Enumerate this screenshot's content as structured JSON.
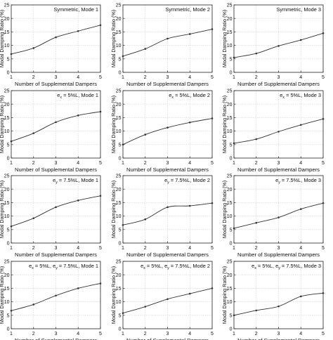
{
  "chart_data": [
    {
      "type": "line",
      "title": "Symmetric, Mode 1",
      "xlabel": "Number of Supplemental Dampers",
      "ylabel": "Modal Damping Ratio (%)",
      "x": [
        1,
        2,
        3,
        4,
        5
      ],
      "ylim": [
        0,
        25
      ],
      "yticks": [
        0,
        5,
        10,
        15,
        20,
        25
      ],
      "xticks": [
        1,
        2,
        3,
        4,
        5
      ],
      "grid": true,
      "series": [
        {
          "values": [
            6.8,
            9.0,
            13.0,
            15.3,
            17.5
          ]
        }
      ]
    },
    {
      "type": "line",
      "title": "Symmetric, Mode 2",
      "xlabel": "Number of Supplemental Dampers",
      "ylabel": "Modal Damping Ratio (%)",
      "x": [
        1,
        2,
        3,
        4,
        5
      ],
      "ylim": [
        0,
        25
      ],
      "yticks": [
        0,
        5,
        10,
        15,
        20,
        25
      ],
      "xticks": [
        1,
        2,
        3,
        4,
        5
      ],
      "grid": true,
      "series": [
        {
          "values": [
            6.0,
            8.7,
            12.5,
            14.2,
            16.0
          ]
        }
      ]
    },
    {
      "type": "line",
      "title": "Symmetric, Mode 3",
      "xlabel": "Number of Supplemental Dampers",
      "ylabel": "Modal Damping Ratio (%)",
      "x": [
        1,
        2,
        3,
        4,
        5
      ],
      "ylim": [
        0,
        25
      ],
      "yticks": [
        0,
        5,
        10,
        15,
        20,
        25
      ],
      "xticks": [
        1,
        2,
        3,
        4,
        5
      ],
      "grid": true,
      "series": [
        {
          "values": [
            5.5,
            7.0,
            9.8,
            12.0,
            14.5
          ]
        }
      ]
    },
    {
      "type": "line",
      "title": "e_x = 5%L, Mode 1",
      "title_main": "e",
      "title_sub": "x",
      "title_rest": " = 5%L, Mode 1",
      "xlabel": "Number of Supplemental Dampers",
      "ylabel": "Modal Damping Ratio (%)",
      "x": [
        1,
        2,
        3,
        4,
        5
      ],
      "ylim": [
        0,
        25
      ],
      "yticks": [
        0,
        5,
        10,
        15,
        20,
        25
      ],
      "xticks": [
        1,
        2,
        3,
        4,
        5
      ],
      "grid": true,
      "series": [
        {
          "values": [
            6.2,
            9.2,
            13.3,
            15.8,
            17.2
          ]
        }
      ]
    },
    {
      "type": "line",
      "title": "e_x = 5%L, Mode 2",
      "title_main": "e",
      "title_sub": "x",
      "title_rest": " = 5%L, Mode 2",
      "xlabel": "Number of Supplemental Dampers",
      "ylabel": "Modal Damping Ratio (%)",
      "x": [
        1,
        2,
        3,
        4,
        5
      ],
      "ylim": [
        0,
        25
      ],
      "yticks": [
        0,
        5,
        10,
        15,
        20,
        25
      ],
      "xticks": [
        1,
        2,
        3,
        4,
        5
      ],
      "grid": true,
      "series": [
        {
          "values": [
            5.0,
            8.7,
            11.3,
            13.2,
            14.7
          ]
        }
      ]
    },
    {
      "type": "line",
      "title": "e_x = 5%L, Mode 3",
      "title_main": "e",
      "title_sub": "x",
      "title_rest": " = 5%L, Mode 3",
      "xlabel": "Number of Supplemental Dampers",
      "ylabel": "Modal Damping Ratio (%)",
      "x": [
        1,
        2,
        3,
        4,
        5
      ],
      "ylim": [
        0,
        25
      ],
      "yticks": [
        0,
        5,
        10,
        15,
        20,
        25
      ],
      "xticks": [
        1,
        2,
        3,
        4,
        5
      ],
      "grid": true,
      "series": [
        {
          "values": [
            5.5,
            7.0,
            9.8,
            12.3,
            14.5
          ]
        }
      ]
    },
    {
      "type": "line",
      "title": "e_y = 7.5%L, Mode 1",
      "title_main": "e",
      "title_sub": "y",
      "title_rest": " = 7.5%L, Mode 1",
      "xlabel": "Number of Supplemental Dampers",
      "ylabel": "Modal Damping Ratio (%)",
      "x": [
        1,
        2,
        3,
        4,
        5
      ],
      "ylim": [
        0,
        25
      ],
      "yticks": [
        0,
        5,
        10,
        15,
        20,
        25
      ],
      "xticks": [
        1,
        2,
        3,
        4,
        5
      ],
      "grid": true,
      "series": [
        {
          "values": [
            6.2,
            9.2,
            13.3,
            15.8,
            17.5
          ]
        }
      ]
    },
    {
      "type": "line",
      "title": "e_y = 7.5%L, Mode 2",
      "title_main": "e",
      "title_sub": "y",
      "title_rest": " = 7.5%L, Mode 2",
      "xlabel": "Number of Supplemental Dampers",
      "ylabel": "Modal Damping Ratio (%)",
      "x": [
        1,
        2,
        3,
        4,
        5
      ],
      "ylim": [
        0,
        25
      ],
      "yticks": [
        0,
        5,
        10,
        15,
        20,
        25
      ],
      "xticks": [
        1,
        2,
        3,
        4,
        5
      ],
      "grid": true,
      "series": [
        {
          "values": [
            6.7,
            8.8,
            13.3,
            13.8,
            14.8
          ]
        }
      ]
    },
    {
      "type": "line",
      "title": "e_y = 7.5%L, Mode 3",
      "title_main": "e",
      "title_sub": "y",
      "title_rest": " = 7.5%L, Mode 3",
      "xlabel": "Number of Supplemental Dampers",
      "ylabel": "Modal Damping Ratio (%)",
      "x": [
        1,
        2,
        3,
        4,
        5
      ],
      "ylim": [
        0,
        25
      ],
      "yticks": [
        0,
        5,
        10,
        15,
        20,
        25
      ],
      "xticks": [
        1,
        2,
        3,
        4,
        5
      ],
      "grid": true,
      "series": [
        {
          "values": [
            5.5,
            7.5,
            9.5,
            12.6,
            14.8
          ]
        }
      ]
    },
    {
      "type": "line",
      "title": "e_x = 5%L, e_y = 7.5%L, Mode 1",
      "title_main": "e",
      "title_sub": "x",
      "title_rest": " = 5%L, e",
      "title_sub2": "y",
      "title_rest2": " = 7.5%L, Mode 1",
      "xlabel": "Number of Supplemental Dampers",
      "ylabel": "Modal Damping Ratio (%)",
      "x": [
        1,
        2,
        3,
        4,
        5
      ],
      "ylim": [
        0,
        25
      ],
      "yticks": [
        0,
        5,
        10,
        15,
        20,
        25
      ],
      "xticks": [
        1,
        2,
        3,
        4,
        5
      ],
      "grid": true,
      "series": [
        {
          "values": [
            6.7,
            9.0,
            12.3,
            15.0,
            16.8
          ]
        }
      ]
    },
    {
      "type": "line",
      "title": "e_x = 5%L, e_y = 7.5%L, Mode 2",
      "title_main": "e",
      "title_sub": "x",
      "title_rest": " = 5%L, e",
      "title_sub2": "y",
      "title_rest2": " = 7.5%L, Mode 2",
      "xlabel": "Number of Supplemental Dampers",
      "ylabel": "Modal Damping Ratio (%)",
      "x": [
        1,
        2,
        3,
        4,
        5
      ],
      "ylim": [
        0,
        25
      ],
      "yticks": [
        0,
        5,
        10,
        15,
        20,
        25
      ],
      "xticks": [
        1,
        2,
        3,
        4,
        5
      ],
      "grid": true,
      "series": [
        {
          "values": [
            5.8,
            8.2,
            11.0,
            13.0,
            15.0
          ]
        }
      ]
    },
    {
      "type": "line",
      "title": "e_x = 5%L, e_y = 7.5%L, Mode 3",
      "title_main": "e",
      "title_sub": "x",
      "title_rest": " = 5%L, e",
      "title_sub2": "y",
      "title_rest2": " = 7.5%L, Mode 3",
      "xlabel": "Number of Supplemental Dampers",
      "ylabel": "Modal Damping Ratio (%)",
      "x": [
        1,
        2,
        3,
        4,
        5
      ],
      "ylim": [
        0,
        25
      ],
      "yticks": [
        0,
        5,
        10,
        15,
        20,
        25
      ],
      "xticks": [
        1,
        2,
        3,
        4,
        5
      ],
      "grid": true,
      "series": [
        {
          "values": [
            5.0,
            6.8,
            8.3,
            12.0,
            13.2
          ]
        }
      ]
    }
  ],
  "colors": {
    "line": "#333333",
    "axis": "#222222",
    "grid": "#cfcfcf",
    "marker": "#333333"
  }
}
